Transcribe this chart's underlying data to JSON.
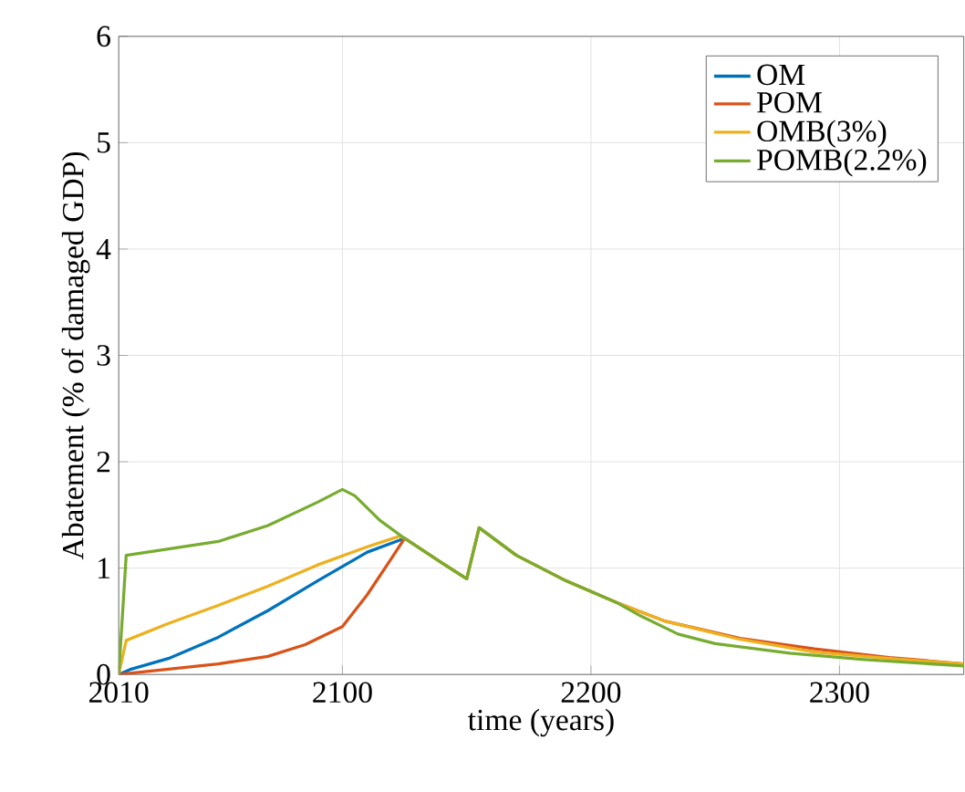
{
  "chart_data": {
    "type": "line",
    "xlabel": "time (years)",
    "ylabel": "Abatement (% of damaged GDP)",
    "xlim": [
      2010,
      2350
    ],
    "ylim": [
      0,
      6
    ],
    "xticks": [
      2010,
      2100,
      2200,
      2300
    ],
    "yticks": [
      0,
      1,
      2,
      3,
      4,
      5,
      6
    ],
    "grid": true,
    "legend": "top right",
    "line_style": "solid",
    "marker": "none",
    "series": [
      {
        "name": "OM",
        "color": "#0072bd",
        "x": [
          2010,
          2015,
          2030,
          2050,
          2070,
          2090,
          2110,
          2125
        ],
        "values": [
          0,
          0.05,
          0.15,
          0.35,
          0.6,
          0.88,
          1.15,
          1.28
        ]
      },
      {
        "name": "POM",
        "color": "#d95319",
        "x": [
          2010,
          2030,
          2050,
          2070,
          2085,
          2100,
          2110,
          2120,
          2125,
          2140,
          2150,
          2155,
          2170,
          2190,
          2210,
          2230,
          2260,
          2290,
          2320,
          2350
        ],
        "values": [
          0,
          0.05,
          0.1,
          0.17,
          0.28,
          0.45,
          0.75,
          1.1,
          1.28,
          1.05,
          0.9,
          1.38,
          1.12,
          0.88,
          0.68,
          0.5,
          0.34,
          0.24,
          0.16,
          0.1
        ]
      },
      {
        "name": "OMB(3%)",
        "color": "#edb120",
        "x": [
          2010,
          2013,
          2030,
          2050,
          2070,
          2090,
          2110,
          2123,
          2125,
          2140,
          2150,
          2155,
          2170,
          2190,
          2210,
          2230,
          2260,
          2290,
          2320,
          2350
        ],
        "values": [
          0,
          0.32,
          0.48,
          0.65,
          0.83,
          1.03,
          1.2,
          1.3,
          1.28,
          1.05,
          0.9,
          1.38,
          1.12,
          0.88,
          0.68,
          0.5,
          0.33,
          0.21,
          0.15,
          0.1
        ]
      },
      {
        "name": "POMB(2.2%)",
        "color": "#77ac30",
        "x": [
          2010,
          2013,
          2030,
          2050,
          2070,
          2090,
          2100,
          2105,
          2115,
          2125,
          2140,
          2150,
          2155,
          2170,
          2190,
          2210,
          2220,
          2235,
          2250,
          2280,
          2310,
          2350
        ],
        "values": [
          0,
          1.12,
          1.18,
          1.25,
          1.4,
          1.62,
          1.74,
          1.68,
          1.45,
          1.28,
          1.05,
          0.9,
          1.38,
          1.12,
          0.88,
          0.68,
          0.55,
          0.38,
          0.29,
          0.2,
          0.14,
          0.08
        ]
      }
    ]
  }
}
